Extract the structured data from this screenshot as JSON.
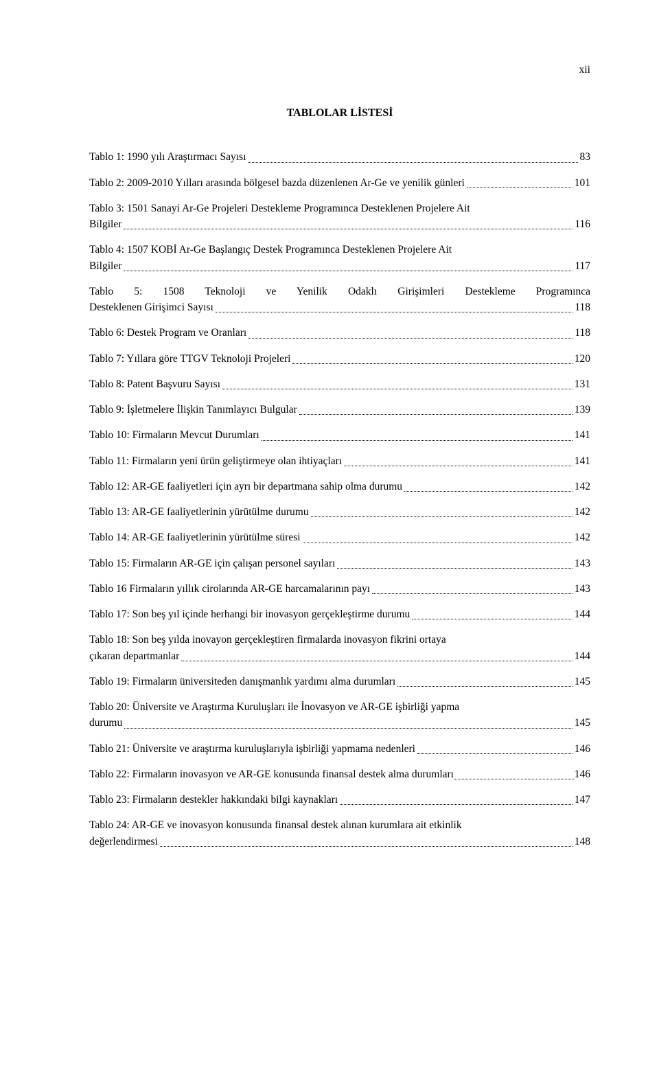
{
  "page_number": "xii",
  "heading": "TABLOLAR LİSTESİ",
  "entries": [
    {
      "label": "Tablo 1: 1990 yılı Araştırmacı  Sayısı",
      "page": "83"
    },
    {
      "label": "Tablo 2: 2009-2010 Yılları arasında bölgesel bazda düzenlenen Ar-Ge ve yenilik günleri",
      "page": "101"
    },
    {
      "label_line1": "Tablo 3: 1501 Sanayi Ar-Ge Projeleri Destekleme Programınca Desteklenen Projelere Ait",
      "label_line2": "Bilgiler",
      "page": "116",
      "multiline": true
    },
    {
      "label_line1": "Tablo 4: 1507 KOBİ Ar-Ge Başlangıç  Destek Programınca Desteklenen Projelere Ait",
      "label_line2": "Bilgiler",
      "page": "117",
      "multiline": true
    },
    {
      "label_line1": "Tablo 5: 1508 Teknoloji ve Yenilik Odaklı Girişimleri Destekleme Programınca",
      "label_line2": "Desteklenen Girişimci Sayısı",
      "page": "118",
      "multiline": true,
      "justify": true
    },
    {
      "label": "Tablo 6: Destek Program ve Oranları",
      "page": "118"
    },
    {
      "label": "Tablo 7: Yıllara göre TTGV Teknoloji Projeleri",
      "page": "120"
    },
    {
      "label": "Tablo 8: Patent Başvuru Sayısı",
      "page": "131"
    },
    {
      "label": "Tablo 9: İşletmelere İlişkin Tanımlayıcı Bulgular",
      "page": "139"
    },
    {
      "label": "Tablo 10: Firmaların Mevcut Durumları",
      "page": "141"
    },
    {
      "label": "Tablo 11: Firmaların yeni ürün geliştirmeye olan ihtiyaçları",
      "page": "141"
    },
    {
      "label": "Tablo 12:  AR-GE faaliyetleri için ayrı bir departmana sahip  olma durumu",
      "page": "142"
    },
    {
      "label": "Tablo 13: AR-GE faaliyetlerinin yürütülme durumu",
      "page": "142"
    },
    {
      "label": "Tablo 14: AR-GE faaliyetlerinin yürütülme süresi",
      "page": "142"
    },
    {
      "label": "Tablo 15: Firmaların AR-GE için çalışan personel sayıları",
      "page": "143"
    },
    {
      "label": "Tablo 16 Firmaların yıllık cirolarında AR-GE harcamalarının payı",
      "page": "143"
    },
    {
      "label": "Tablo 17: Son beş yıl içinde herhangi bir inovasyon gerçekleştirme durumu",
      "page": "144"
    },
    {
      "label_line1": "Tablo 18: Son beş yılda inovayon gerçekleştiren firmalarda inovasyon fikrini  ortaya",
      "label_line2": "çıkaran departmanlar",
      "page": "144",
      "multiline": true
    },
    {
      "label": "Tablo 19: Firmaların üniversiteden danışmanlık yardımı alma durumları",
      "page": "145"
    },
    {
      "label_line1": "Tablo 20: Üniversite ve Araştırma Kuruluşları ile İnovasyon ve AR-GE işbirliği yapma",
      "label_line2": "durumu",
      "page": "145",
      "multiline": true
    },
    {
      "label": "Tablo 21: Üniversite ve araştırma kuruluşlarıyla işbirliği yapmama nedenleri",
      "page": "146"
    },
    {
      "label": "Tablo 22: Firmaların inovasyon ve AR-GE konusunda finansal destek alma durumları",
      "page": "146",
      "tight": true
    },
    {
      "label": "Tablo 23: Firmaların destekler hakkındaki bilgi kaynakları",
      "page": "147"
    },
    {
      "label_line1": "Tablo 24: AR-GE ve inovasyon konusunda finansal destek alınan kurumlara ait etkinlik",
      "label_line2": "değerlendirmesi",
      "page": "148",
      "multiline": true
    }
  ]
}
